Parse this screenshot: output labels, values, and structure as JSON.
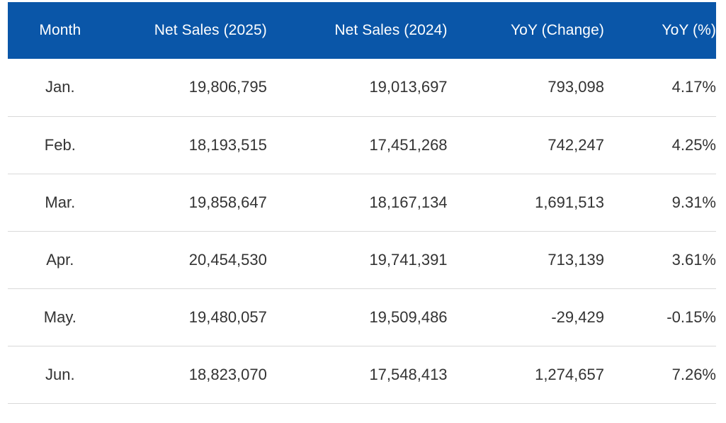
{
  "table": {
    "headers": {
      "month": "Month",
      "sales_2025": "Net Sales (2025)",
      "sales_2024": "Net Sales (2024)",
      "yoy_change": "YoY (Change)",
      "yoy_pct": "YoY (%)"
    },
    "rows": [
      {
        "month": "Jan.",
        "sales_2025": "19,806,795",
        "sales_2024": "19,013,697",
        "yoy_change": "793,098",
        "yoy_pct": "4.17%"
      },
      {
        "month": "Feb.",
        "sales_2025": "18,193,515",
        "sales_2024": "17,451,268",
        "yoy_change": "742,247",
        "yoy_pct": "4.25%"
      },
      {
        "month": "Mar.",
        "sales_2025": "19,858,647",
        "sales_2024": "18,167,134",
        "yoy_change": "1,691,513",
        "yoy_pct": "9.31%"
      },
      {
        "month": "Apr.",
        "sales_2025": "20,454,530",
        "sales_2024": "19,741,391",
        "yoy_change": "713,139",
        "yoy_pct": "3.61%"
      },
      {
        "month": "May.",
        "sales_2025": "19,480,057",
        "sales_2024": "19,509,486",
        "yoy_change": "-29,429",
        "yoy_pct": "-0.15%"
      },
      {
        "month": "Jun.",
        "sales_2025": "18,823,070",
        "sales_2024": "17,548,413",
        "yoy_change": "1,274,657",
        "yoy_pct": "7.26%"
      }
    ]
  },
  "colors": {
    "header_bg": "#0a56a8",
    "header_text": "#ffffff",
    "body_text": "#333333",
    "row_divider": "#d9d9d9"
  }
}
